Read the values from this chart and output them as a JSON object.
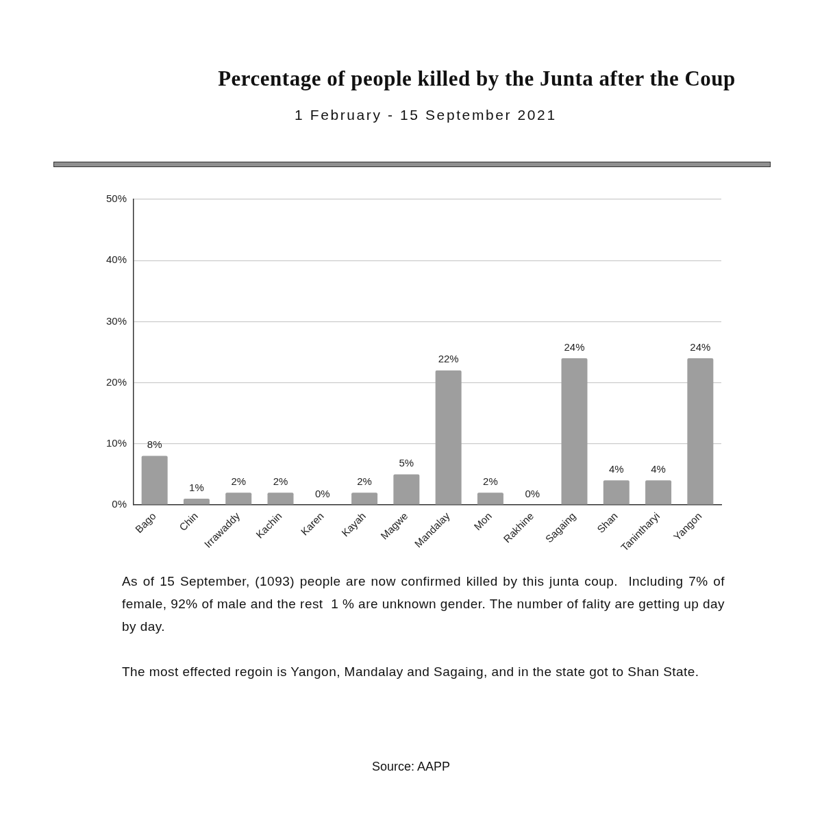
{
  "chart_data": {
    "type": "bar",
    "title": "Percentage of people killed by the Junta after the Coup",
    "subtitle": "1 February - 15 September 2021",
    "categories": [
      "Bago",
      "Chin",
      "Irrawaddy",
      "Kachin",
      "Karen",
      "Kayah",
      "Magwe",
      "Mandalay",
      "Mon",
      "Rakhine",
      "Sagaing",
      "Shan",
      "Tanintharyi",
      "Yangon"
    ],
    "values": [
      8,
      1,
      2,
      2,
      0,
      2,
      5,
      22,
      2,
      0,
      24,
      4,
      4,
      24
    ],
    "value_labels": [
      "8%",
      "1%",
      "2%",
      "2%",
      "0%",
      "2%",
      "5%",
      "22%",
      "2%",
      "0%",
      "24%",
      "4%",
      "4%",
      "24%"
    ],
    "color": "#9e9e9e",
    "ylim": [
      0,
      50
    ],
    "yticks": [
      {
        "value": 0,
        "label": "0%"
      },
      {
        "value": 10,
        "label": "10%"
      },
      {
        "value": 20,
        "label": "20%"
      },
      {
        "value": 30,
        "label": "30%"
      },
      {
        "value": 40,
        "label": "40%"
      },
      {
        "value": 50,
        "label": "50%"
      }
    ],
    "grid": "y",
    "annotations": [
      "As of 15 September, (1093) people are now confirmed killed by this junta coup.  Including 7% of female, 92% of male and the rest  1 % are unknown gender. The number of fality are getting up day by day.",
      "The most effected regoin is Yangon, Mandalay and Sagaing, and in the state got to Shan State.",
      "Source: AAPP"
    ]
  }
}
